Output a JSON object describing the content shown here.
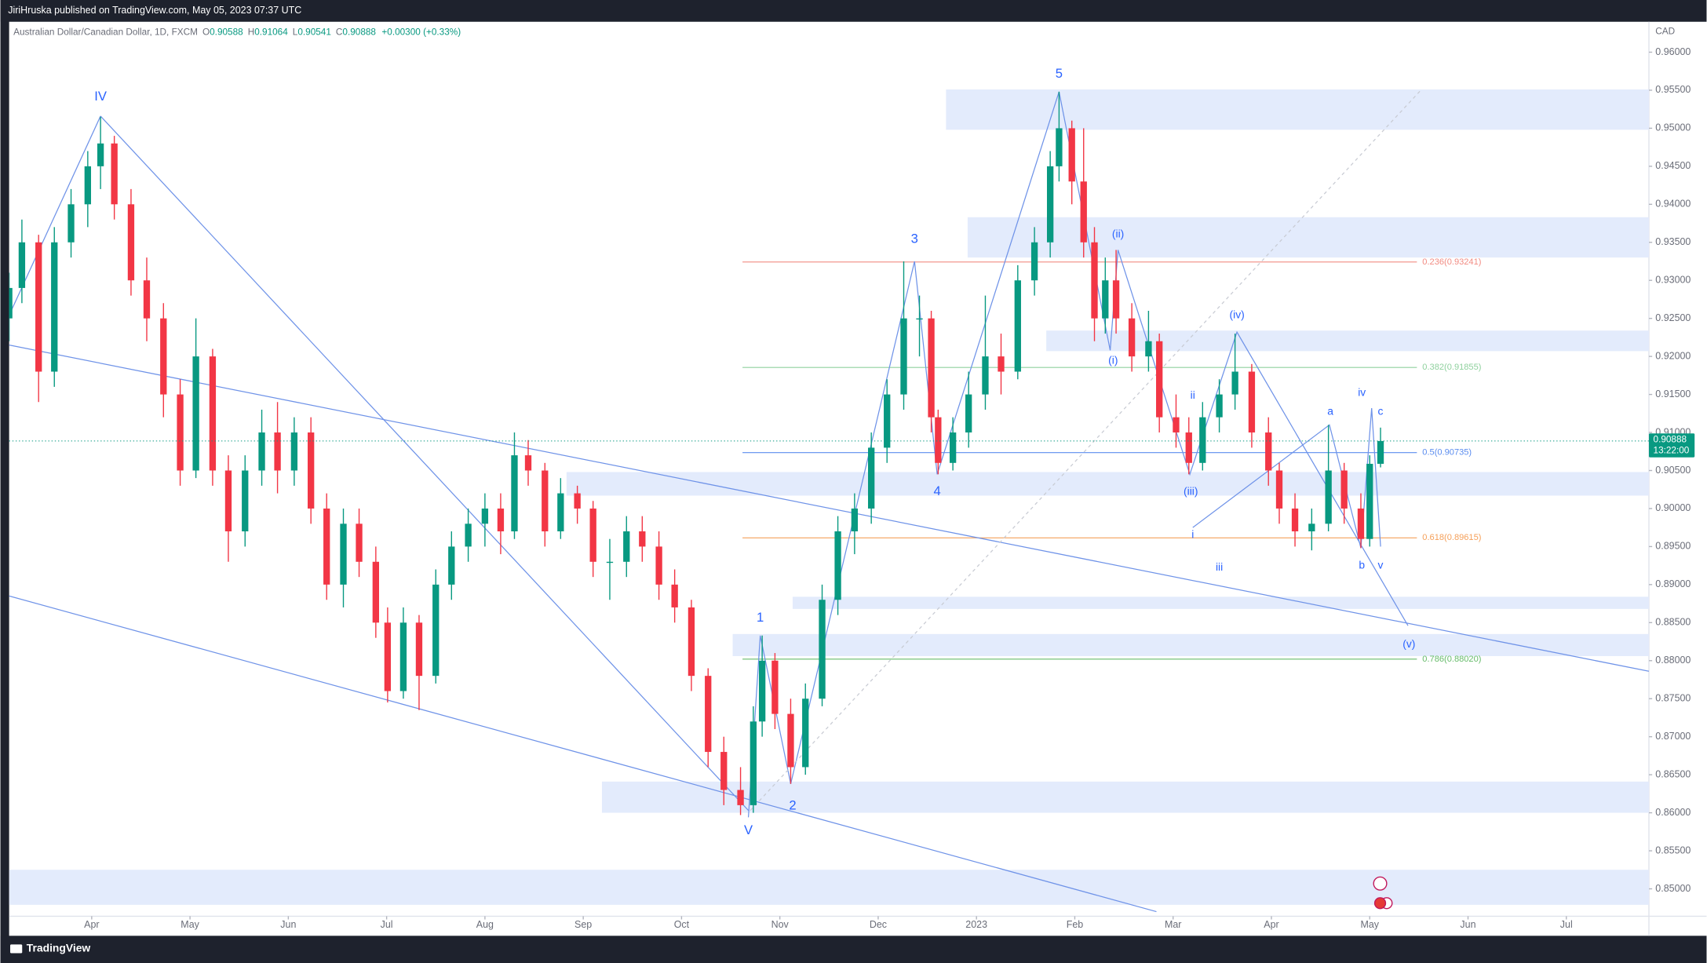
{
  "header": {
    "published": "JiriHruska published on TradingView.com, May 05, 2023 07:37 UTC",
    "brand": "TradingView"
  },
  "chart_data": {
    "type": "candlestick",
    "symbol": "Australian Dollar/Canadian Dollar, 1D, FXCM",
    "ohlc_letters": [
      "O",
      "H",
      "L",
      "C"
    ],
    "change": "+0.00300 (+0.33%)",
    "currency": "CAD",
    "countdown": "13:22:00",
    "up_color": "#089981",
    "down_color": "#f23645",
    "line_color": "#6f93e8",
    "zone_color": "#e3ebfc",
    "xlim": [
      -0.84,
      15.84
    ],
    "ylim": [
      0.8464,
      0.964
    ],
    "xticks": [
      {
        "value": 0,
        "label": "Apr"
      },
      {
        "value": 1,
        "label": "May"
      },
      {
        "value": 2,
        "label": "Jun"
      },
      {
        "value": 3,
        "label": "Jul"
      },
      {
        "value": 4,
        "label": "Aug"
      },
      {
        "value": 5,
        "label": "Sep"
      },
      {
        "value": 6,
        "label": "Oct"
      },
      {
        "value": 7,
        "label": "Nov"
      },
      {
        "value": 8,
        "label": "Dec"
      },
      {
        "value": 9,
        "label": "2023"
      },
      {
        "value": 10,
        "label": "Feb"
      },
      {
        "value": 11,
        "label": "Mar"
      },
      {
        "value": 12,
        "label": "Apr"
      },
      {
        "value": 13,
        "label": "May"
      },
      {
        "value": 14,
        "label": "Jun"
      },
      {
        "value": 15,
        "label": "Jul"
      }
    ],
    "yticks": [
      {
        "value": 0.85,
        "label": "0.85000"
      },
      {
        "value": 0.855,
        "label": "0.85500"
      },
      {
        "value": 0.86,
        "label": "0.86000"
      },
      {
        "value": 0.865,
        "label": "0.86500"
      },
      {
        "value": 0.87,
        "label": "0.87000"
      },
      {
        "value": 0.875,
        "label": "0.87500"
      },
      {
        "value": 0.88,
        "label": "0.88000"
      },
      {
        "value": 0.885,
        "label": "0.88500"
      },
      {
        "value": 0.89,
        "label": "0.89000"
      },
      {
        "value": 0.895,
        "label": "0.89500"
      },
      {
        "value": 0.9,
        "label": "0.90000"
      },
      {
        "value": 0.905,
        "label": "0.90500"
      },
      {
        "value": 0.91,
        "label": "0.91000"
      },
      {
        "value": 0.915,
        "label": "0.91500"
      },
      {
        "value": 0.92,
        "label": "0.92000"
      },
      {
        "value": 0.925,
        "label": "0.92500"
      },
      {
        "value": 0.93,
        "label": "0.93000"
      },
      {
        "value": 0.935,
        "label": "0.93500"
      },
      {
        "value": 0.94,
        "label": "0.94000"
      },
      {
        "value": 0.945,
        "label": "0.94500"
      },
      {
        "value": 0.95,
        "label": "0.95000"
      },
      {
        "value": 0.955,
        "label": "0.95500"
      },
      {
        "value": 0.96,
        "label": "0.96000"
      }
    ],
    "candles": [
      {
        "x": -0.84,
        "open": 0.925,
        "high": 0.931,
        "low": 0.922,
        "close": 0.929
      },
      {
        "x": -0.71,
        "open": 0.929,
        "high": 0.938,
        "low": 0.927,
        "close": 0.935
      },
      {
        "x": -0.54,
        "open": 0.935,
        "high": 0.936,
        "low": 0.914,
        "close": 0.918
      },
      {
        "x": -0.38,
        "open": 0.918,
        "high": 0.937,
        "low": 0.916,
        "close": 0.935
      },
      {
        "x": -0.21,
        "open": 0.935,
        "high": 0.942,
        "low": 0.933,
        "close": 0.94
      },
      {
        "x": -0.04,
        "open": 0.94,
        "high": 0.947,
        "low": 0.937,
        "close": 0.945
      },
      {
        "x": 0.09,
        "open": 0.945,
        "high": 0.9515,
        "low": 0.942,
        "close": 0.948
      },
      {
        "x": 0.23,
        "open": 0.948,
        "high": 0.949,
        "low": 0.938,
        "close": 0.94
      },
      {
        "x": 0.4,
        "open": 0.94,
        "high": 0.942,
        "low": 0.928,
        "close": 0.93
      },
      {
        "x": 0.56,
        "open": 0.93,
        "high": 0.933,
        "low": 0.922,
        "close": 0.925
      },
      {
        "x": 0.73,
        "open": 0.925,
        "high": 0.927,
        "low": 0.912,
        "close": 0.915
      },
      {
        "x": 0.9,
        "open": 0.915,
        "high": 0.917,
        "low": 0.903,
        "close": 0.905
      },
      {
        "x": 1.06,
        "open": 0.905,
        "high": 0.925,
        "low": 0.904,
        "close": 0.92
      },
      {
        "x": 1.23,
        "open": 0.92,
        "high": 0.921,
        "low": 0.903,
        "close": 0.905
      },
      {
        "x": 1.39,
        "open": 0.905,
        "high": 0.907,
        "low": 0.893,
        "close": 0.897
      },
      {
        "x": 1.56,
        "open": 0.897,
        "high": 0.907,
        "low": 0.895,
        "close": 0.905
      },
      {
        "x": 1.73,
        "open": 0.905,
        "high": 0.913,
        "low": 0.903,
        "close": 0.91
      },
      {
        "x": 1.89,
        "open": 0.91,
        "high": 0.914,
        "low": 0.902,
        "close": 0.905
      },
      {
        "x": 2.06,
        "open": 0.905,
        "high": 0.912,
        "low": 0.903,
        "close": 0.91
      },
      {
        "x": 2.23,
        "open": 0.91,
        "high": 0.912,
        "low": 0.898,
        "close": 0.9
      },
      {
        "x": 2.39,
        "open": 0.9,
        "high": 0.902,
        "low": 0.888,
        "close": 0.89
      },
      {
        "x": 2.56,
        "open": 0.89,
        "high": 0.9,
        "low": 0.887,
        "close": 0.898
      },
      {
        "x": 2.72,
        "open": 0.898,
        "high": 0.9,
        "low": 0.891,
        "close": 0.893
      },
      {
        "x": 2.89,
        "open": 0.893,
        "high": 0.895,
        "low": 0.883,
        "close": 0.885
      },
      {
        "x": 3.01,
        "open": 0.885,
        "high": 0.887,
        "low": 0.8745,
        "close": 0.876
      },
      {
        "x": 3.17,
        "open": 0.876,
        "high": 0.887,
        "low": 0.875,
        "close": 0.885
      },
      {
        "x": 3.33,
        "open": 0.885,
        "high": 0.886,
        "low": 0.8735,
        "close": 0.878
      },
      {
        "x": 3.5,
        "open": 0.878,
        "high": 0.892,
        "low": 0.877,
        "close": 0.89
      },
      {
        "x": 3.66,
        "open": 0.89,
        "high": 0.897,
        "low": 0.888,
        "close": 0.895
      },
      {
        "x": 3.83,
        "open": 0.895,
        "high": 0.9,
        "low": 0.893,
        "close": 0.898
      },
      {
        "x": 4.0,
        "open": 0.898,
        "high": 0.902,
        "low": 0.895,
        "close": 0.9
      },
      {
        "x": 4.16,
        "open": 0.9,
        "high": 0.902,
        "low": 0.894,
        "close": 0.897
      },
      {
        "x": 4.3,
        "open": 0.897,
        "high": 0.91,
        "low": 0.896,
        "close": 0.907
      },
      {
        "x": 4.44,
        "open": 0.907,
        "high": 0.909,
        "low": 0.903,
        "close": 0.905
      },
      {
        "x": 4.61,
        "open": 0.905,
        "high": 0.906,
        "low": 0.895,
        "close": 0.897
      },
      {
        "x": 4.77,
        "open": 0.897,
        "high": 0.904,
        "low": 0.896,
        "close": 0.902
      },
      {
        "x": 4.94,
        "open": 0.902,
        "high": 0.903,
        "low": 0.898,
        "close": 0.9
      },
      {
        "x": 5.1,
        "open": 0.9,
        "high": 0.901,
        "low": 0.891,
        "close": 0.893
      },
      {
        "x": 5.27,
        "open": 0.893,
        "high": 0.896,
        "low": 0.888,
        "close": 0.893
      },
      {
        "x": 5.44,
        "open": 0.893,
        "high": 0.899,
        "low": 0.891,
        "close": 0.897
      },
      {
        "x": 5.6,
        "open": 0.897,
        "high": 0.899,
        "low": 0.893,
        "close": 0.895
      },
      {
        "x": 5.77,
        "open": 0.895,
        "high": 0.897,
        "low": 0.888,
        "close": 0.89
      },
      {
        "x": 5.93,
        "open": 0.89,
        "high": 0.892,
        "low": 0.885,
        "close": 0.887
      },
      {
        "x": 6.1,
        "open": 0.887,
        "high": 0.888,
        "low": 0.876,
        "close": 0.878
      },
      {
        "x": 6.27,
        "open": 0.878,
        "high": 0.879,
        "low": 0.866,
        "close": 0.868
      },
      {
        "x": 6.43,
        "open": 0.868,
        "high": 0.87,
        "low": 0.861,
        "close": 0.863
      },
      {
        "x": 6.6,
        "open": 0.863,
        "high": 0.866,
        "low": 0.8597,
        "close": 0.861
      },
      {
        "x": 6.73,
        "open": 0.861,
        "high": 0.874,
        "low": 0.86,
        "close": 0.872
      },
      {
        "x": 6.82,
        "open": 0.872,
        "high": 0.8833,
        "low": 0.87,
        "close": 0.88
      },
      {
        "x": 6.95,
        "open": 0.88,
        "high": 0.881,
        "low": 0.871,
        "close": 0.873
      },
      {
        "x": 7.11,
        "open": 0.873,
        "high": 0.875,
        "low": 0.8638,
        "close": 0.866
      },
      {
        "x": 7.26,
        "open": 0.866,
        "high": 0.877,
        "low": 0.865,
        "close": 0.875
      },
      {
        "x": 7.43,
        "open": 0.875,
        "high": 0.89,
        "low": 0.874,
        "close": 0.888
      },
      {
        "x": 7.59,
        "open": 0.888,
        "high": 0.899,
        "low": 0.886,
        "close": 0.897
      },
      {
        "x": 7.76,
        "open": 0.897,
        "high": 0.902,
        "low": 0.894,
        "close": 0.9
      },
      {
        "x": 7.93,
        "open": 0.9,
        "high": 0.91,
        "low": 0.898,
        "close": 0.908
      },
      {
        "x": 8.09,
        "open": 0.908,
        "high": 0.917,
        "low": 0.906,
        "close": 0.915
      },
      {
        "x": 8.26,
        "open": 0.915,
        "high": 0.9325,
        "low": 0.913,
        "close": 0.925
      },
      {
        "x": 8.42,
        "open": 0.925,
        "high": 0.928,
        "low": 0.92,
        "close": 0.925
      },
      {
        "x": 8.54,
        "open": 0.925,
        "high": 0.926,
        "low": 0.91,
        "close": 0.912
      },
      {
        "x": 8.61,
        "open": 0.912,
        "high": 0.913,
        "low": 0.9045,
        "close": 0.906
      },
      {
        "x": 8.76,
        "open": 0.906,
        "high": 0.912,
        "low": 0.905,
        "close": 0.91
      },
      {
        "x": 8.92,
        "open": 0.91,
        "high": 0.918,
        "low": 0.908,
        "close": 0.915
      },
      {
        "x": 9.09,
        "open": 0.915,
        "high": 0.928,
        "low": 0.913,
        "close": 0.92
      },
      {
        "x": 9.25,
        "open": 0.92,
        "high": 0.923,
        "low": 0.915,
        "close": 0.918
      },
      {
        "x": 9.42,
        "open": 0.918,
        "high": 0.932,
        "low": 0.917,
        "close": 0.93
      },
      {
        "x": 9.59,
        "open": 0.93,
        "high": 0.937,
        "low": 0.928,
        "close": 0.935
      },
      {
        "x": 9.75,
        "open": 0.935,
        "high": 0.947,
        "low": 0.933,
        "close": 0.945
      },
      {
        "x": 9.84,
        "open": 0.945,
        "high": 0.9548,
        "low": 0.943,
        "close": 0.95
      },
      {
        "x": 9.97,
        "open": 0.95,
        "high": 0.951,
        "low": 0.94,
        "close": 0.943
      },
      {
        "x": 10.09,
        "open": 0.943,
        "high": 0.95,
        "low": 0.933,
        "close": 0.935
      },
      {
        "x": 10.2,
        "open": 0.935,
        "high": 0.937,
        "low": 0.922,
        "close": 0.925
      },
      {
        "x": 10.31,
        "open": 0.925,
        "high": 0.933,
        "low": 0.923,
        "close": 0.93
      },
      {
        "x": 10.42,
        "open": 0.93,
        "high": 0.934,
        "low": 0.923,
        "close": 0.925
      },
      {
        "x": 10.58,
        "open": 0.925,
        "high": 0.927,
        "low": 0.918,
        "close": 0.92
      },
      {
        "x": 10.75,
        "open": 0.92,
        "high": 0.926,
        "low": 0.918,
        "close": 0.922
      },
      {
        "x": 10.86,
        "open": 0.922,
        "high": 0.923,
        "low": 0.91,
        "close": 0.912
      },
      {
        "x": 11.03,
        "open": 0.912,
        "high": 0.915,
        "low": 0.908,
        "close": 0.91
      },
      {
        "x": 11.16,
        "open": 0.91,
        "high": 0.912,
        "low": 0.9045,
        "close": 0.906
      },
      {
        "x": 11.3,
        "open": 0.906,
        "high": 0.914,
        "low": 0.905,
        "close": 0.912
      },
      {
        "x": 11.47,
        "open": 0.912,
        "high": 0.917,
        "low": 0.91,
        "close": 0.915
      },
      {
        "x": 11.63,
        "open": 0.915,
        "high": 0.923,
        "low": 0.913,
        "close": 0.918
      },
      {
        "x": 11.8,
        "open": 0.918,
        "high": 0.919,
        "low": 0.908,
        "close": 0.91
      },
      {
        "x": 11.97,
        "open": 0.91,
        "high": 0.912,
        "low": 0.903,
        "close": 0.905
      },
      {
        "x": 12.08,
        "open": 0.905,
        "high": 0.906,
        "low": 0.898,
        "close": 0.9
      },
      {
        "x": 12.24,
        "open": 0.9,
        "high": 0.902,
        "low": 0.895,
        "close": 0.897
      },
      {
        "x": 12.41,
        "open": 0.897,
        "high": 0.9,
        "low": 0.8945,
        "close": 0.898
      },
      {
        "x": 12.58,
        "open": 0.898,
        "high": 0.911,
        "low": 0.897,
        "close": 0.905
      },
      {
        "x": 12.74,
        "open": 0.905,
        "high": 0.906,
        "low": 0.898,
        "close": 0.9
      },
      {
        "x": 12.91,
        "open": 0.9,
        "high": 0.902,
        "low": 0.8948,
        "close": 0.896
      },
      {
        "x": 13.0,
        "open": 0.896,
        "high": 0.907,
        "low": 0.895,
        "close": 0.90588
      },
      {
        "x": 13.11,
        "open": 0.90588,
        "high": 0.91064,
        "low": 0.90541,
        "close": 0.90888
      }
    ],
    "waves": [
      {
        "label": "IV",
        "x": 0.09,
        "y": 0.9541
      },
      {
        "label": "5",
        "x": 9.84,
        "y": 0.9571
      },
      {
        "label": "3",
        "x": 8.37,
        "y": 0.9354
      },
      {
        "label": "4",
        "x": 8.6,
        "y": 0.9022
      },
      {
        "label": "1",
        "x": 6.8,
        "y": 0.8856
      },
      {
        "label": "2",
        "x": 7.13,
        "y": 0.8609
      },
      {
        "label": "V",
        "x": 6.68,
        "y": 0.8576
      },
      {
        "label": "(ii)",
        "x": 10.44,
        "y": 0.936
      },
      {
        "label": "(i)",
        "x": 10.39,
        "y": 0.9194
      },
      {
        "label": "(iv)",
        "x": 11.65,
        "y": 0.9254
      },
      {
        "label": "(iii)",
        "x": 11.18,
        "y": 0.9022
      },
      {
        "label": "ii",
        "x": 11.2,
        "y": 0.9148
      },
      {
        "label": "i",
        "x": 11.2,
        "y": 0.8965
      },
      {
        "label": "iii",
        "x": 11.47,
        "y": 0.8922
      },
      {
        "label": "a",
        "x": 12.6,
        "y": 0.9127
      },
      {
        "label": "iv",
        "x": 12.92,
        "y": 0.9152
      },
      {
        "label": "c",
        "x": 13.11,
        "y": 0.9127
      },
      {
        "label": "b",
        "x": 12.92,
        "y": 0.8925
      },
      {
        "label": "v",
        "x": 13.11,
        "y": 0.8925
      },
      {
        "label": "(v)",
        "x": 13.4,
        "y": 0.8821
      }
    ],
    "fib_x": [
      6.62,
      13.48
    ],
    "fib_levels": [
      {
        "value": 0.93241,
        "label": "0.236(0.93241)",
        "color": "#f28b82"
      },
      {
        "value": 0.91855,
        "label": "0.382(0.91855)",
        "color": "#8fd19e"
      },
      {
        "value": 0.90735,
        "label": "0.5(0.90735)",
        "color": "#5b8def"
      },
      {
        "value": 0.89615,
        "label": "0.618(0.89615)",
        "color": "#f5a05a"
      },
      {
        "value": 0.8802,
        "label": "0.786(0.88020)",
        "color": "#66bb6a"
      }
    ],
    "zones": [
      {
        "x": 8.69,
        "top": 0.9551,
        "bottom": 0.9498
      },
      {
        "x": 8.91,
        "top": 0.9383,
        "bottom": 0.933
      },
      {
        "x": 9.71,
        "top": 0.9234,
        "bottom": 0.9207
      },
      {
        "x": 4.83,
        "top": 0.9048,
        "bottom": 0.9017
      },
      {
        "x": 7.13,
        "top": 0.8884,
        "bottom": 0.8868
      },
      {
        "x": 6.52,
        "top": 0.8835,
        "bottom": 0.8806
      },
      {
        "x": 5.19,
        "top": 0.8641,
        "bottom": 0.86
      },
      {
        "x": -0.84,
        "top": 0.8525,
        "bottom": 0.8479
      }
    ],
    "lines": [
      {
        "dashed": false,
        "x": [
          -0.84,
          15.84
        ],
        "y": [
          0.9215,
          0.8786
        ]
      },
      {
        "dashed": false,
        "x": [
          -0.84,
          10.83
        ],
        "y": [
          0.8885,
          0.847
        ]
      },
      {
        "dashed": false,
        "x": [
          0.09,
          6.68
        ],
        "y": [
          0.9516,
          0.8603
        ]
      },
      {
        "dashed": false,
        "x": [
          -0.84,
          0.09
        ],
        "y": [
          0.9254,
          0.9516
        ]
      },
      {
        "dashed": false,
        "x": [
          6.68,
          6.8,
          7.11,
          8.37,
          8.6,
          9.84,
          10.36,
          10.44,
          11.17,
          11.65,
          13.39
        ],
        "y": [
          0.8594,
          0.8833,
          0.8638,
          0.9325,
          0.9045,
          0.9548,
          0.9208,
          0.934,
          0.9045,
          0.9232,
          0.8846
        ]
      },
      {
        "dashed": false,
        "x": [
          11.2,
          12.59,
          12.91,
          13.02,
          13.11
        ],
        "y": [
          0.8975,
          0.911,
          0.8948,
          0.9132,
          0.895
        ]
      },
      {
        "dashed": true,
        "x": [
          6.7,
          13.52
        ],
        "y": [
          0.8603,
          0.955
        ]
      }
    ]
  }
}
